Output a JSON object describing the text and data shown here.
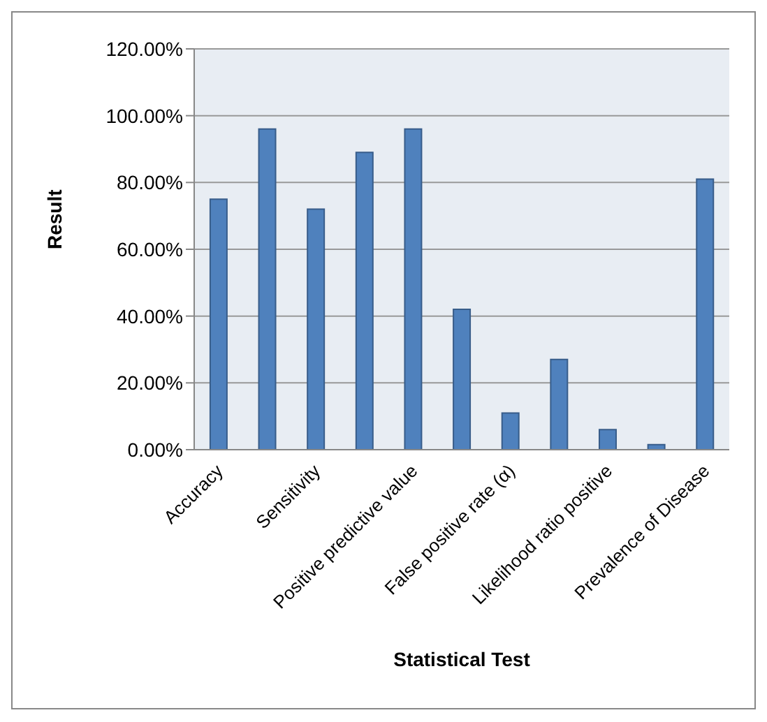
{
  "chart_data": {
    "type": "bar",
    "xlabel": "Statistical Test",
    "ylabel": "Result",
    "categories": [
      "Accuracy",
      null,
      "Sensitivity",
      null,
      "Positive predictive value",
      null,
      "False positive rate (α)",
      null,
      "Likelihood ratio positive",
      null,
      "Prevalence of Disease"
    ],
    "values": [
      75,
      96,
      72,
      89,
      96,
      42,
      11,
      27,
      6,
      1.5,
      81
    ],
    "color": "#4f81bd",
    "ylim": [
      0,
      120
    ],
    "yticks": [
      {
        "value": 0,
        "label": "0.00%"
      },
      {
        "value": 20,
        "label": "20.00%"
      },
      {
        "value": 40,
        "label": "40.00%"
      },
      {
        "value": 60,
        "label": "60.00%"
      },
      {
        "value": 80,
        "label": "80.00%"
      },
      {
        "value": 100,
        "label": "100.00%"
      },
      {
        "value": 120,
        "label": "120.00%"
      }
    ],
    "grid": "y",
    "legend": false
  }
}
